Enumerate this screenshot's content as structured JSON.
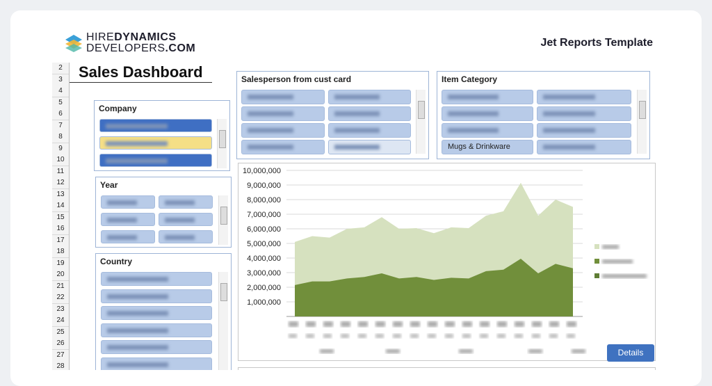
{
  "header": {
    "logo": {
      "line1": [
        "HIRE",
        "DYNAMICS"
      ],
      "line2": [
        "DEVELOPERS",
        ".COM"
      ]
    },
    "title": "Jet Reports Template"
  },
  "sheet": {
    "title": "Sales Dashboard",
    "row_numbers": [
      2,
      3,
      4,
      5,
      6,
      7,
      8,
      9,
      10,
      11,
      12,
      13,
      14,
      15,
      16,
      17,
      18,
      19,
      20,
      21,
      22,
      23,
      24,
      25,
      26,
      27,
      28
    ],
    "slicers": {
      "salesperson": "Salesperson from cust card",
      "item_category": "Item Category",
      "item_category_visible_item": "Mugs & Drinkware",
      "company": "Company",
      "year": "Year",
      "country": "Country"
    },
    "button": "Details"
  },
  "chart_data": {
    "type": "area",
    "categories": [
      null,
      null,
      null,
      null,
      null,
      null,
      null,
      null,
      null,
      null,
      null,
      null,
      null,
      null,
      null,
      null,
      null
    ],
    "series": [
      {
        "color": "#d6e1bf",
        "values": [
          5100000,
          5500000,
          5400000,
          6000000,
          6100000,
          6800000,
          6000000,
          6050000,
          5700000,
          6100000,
          6050000,
          6900000,
          7200000,
          9150000,
          6900000,
          8000000,
          7500000
        ]
      },
      {
        "color": "#718f3b",
        "values": [
          2150000,
          2400000,
          2400000,
          2600000,
          2700000,
          2950000,
          2600000,
          2700000,
          2500000,
          2650000,
          2600000,
          3100000,
          3200000,
          3950000,
          2950000,
          3600000,
          3300000
        ]
      }
    ],
    "ylim": [
      0,
      10000000
    ],
    "yticks": [
      {
        "value": 1000000,
        "label": "1,000,000"
      },
      {
        "value": 2000000,
        "label": "2,000,000"
      },
      {
        "value": 3000000,
        "label": "3,000,000"
      },
      {
        "value": 4000000,
        "label": "4,000,000"
      },
      {
        "value": 5000000,
        "label": "5,000,000"
      },
      {
        "value": 6000000,
        "label": "6,000,000"
      },
      {
        "value": 7000000,
        "label": "7,000,000"
      },
      {
        "value": 8000000,
        "label": "8,000,000"
      },
      {
        "value": 9000000,
        "label": "9,000,000"
      },
      {
        "value": 10000000,
        "label": "10,000,000"
      }
    ],
    "grid": true
  }
}
